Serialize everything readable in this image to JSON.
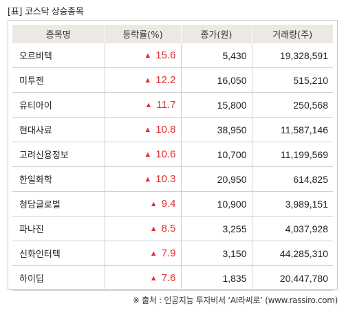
{
  "title": "[표] 코스닥 상승종목",
  "headers": [
    "종목명",
    "등락률(%)",
    "종가(원)",
    "거래량(주)"
  ],
  "rows": [
    {
      "name": "오르비텍",
      "change": "15.6",
      "price": "5,430",
      "volume": "19,328,591"
    },
    {
      "name": "미투젠",
      "change": "12.2",
      "price": "16,050",
      "volume": "515,210"
    },
    {
      "name": "유티아이",
      "change": "11.7",
      "price": "15,800",
      "volume": "250,568"
    },
    {
      "name": "현대사료",
      "change": "10.8",
      "price": "38,950",
      "volume": "11,587,146"
    },
    {
      "name": "고려신용정보",
      "change": "10.6",
      "price": "10,700",
      "volume": "11,199,569"
    },
    {
      "name": "한일화학",
      "change": "10.3",
      "price": "20,950",
      "volume": "614,825"
    },
    {
      "name": "청담글로벌",
      "change": "9.4",
      "price": "10,900",
      "volume": "3,989,151"
    },
    {
      "name": "파나진",
      "change": "8.5",
      "price": "3,255",
      "volume": "4,037,928"
    },
    {
      "name": "신화인터텍",
      "change": "7.9",
      "price": "3,150",
      "volume": "44,285,310"
    },
    {
      "name": "하이딥",
      "change": "7.6",
      "price": "1,835",
      "volume": "20,447,780"
    }
  ],
  "up_arrow": "▲",
  "source": "※ 출처 : 인공지능 투자비서 ‘AI라씨로’ (www.rassiro.com)",
  "colors": {
    "up": "#e12e2e",
    "header_bg": "#ece9e4",
    "border": "#cfcfcf"
  }
}
